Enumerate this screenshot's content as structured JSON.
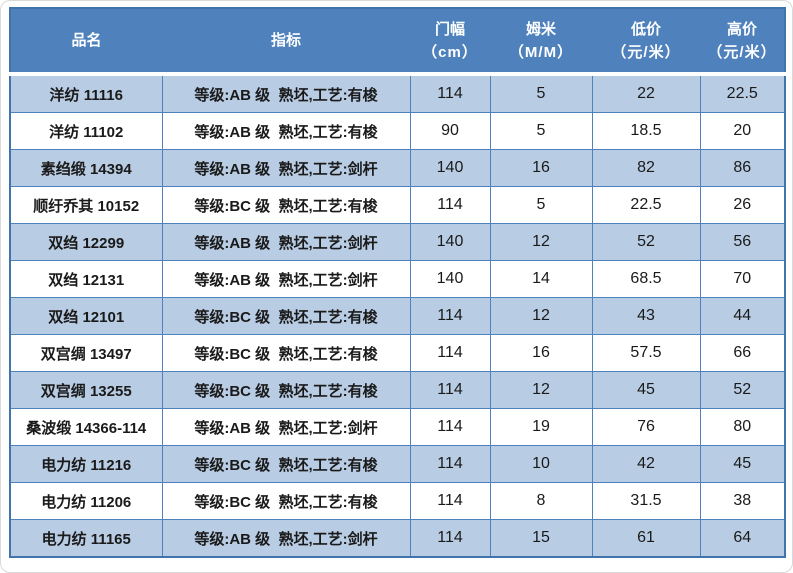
{
  "table": {
    "columns": [
      {
        "key": "name",
        "label": "品名",
        "unit": ""
      },
      {
        "key": "spec",
        "label": "指标",
        "unit": ""
      },
      {
        "key": "width",
        "label": "门幅",
        "unit": "（cm）"
      },
      {
        "key": "momme",
        "label": "姆米",
        "unit": "（M/M）"
      },
      {
        "key": "low",
        "label": "低价",
        "unit": "（元/米）"
      },
      {
        "key": "high",
        "label": "高价",
        "unit": "（元/米）"
      }
    ],
    "rows": [
      {
        "name": "洋纺 11116",
        "spec": "等级:AB 级  熟坯,工艺:有梭",
        "width": "114",
        "momme": "5",
        "low": "22",
        "high": "22.5"
      },
      {
        "name": "洋纺 11102",
        "spec": "等级:AB 级  熟坯,工艺:有梭",
        "width": "90",
        "momme": "5",
        "low": "18.5",
        "high": "20"
      },
      {
        "name": "素绉缎 14394",
        "spec": "等级:AB 级  熟坯,工艺:剑杆",
        "width": "140",
        "momme": "16",
        "low": "82",
        "high": "86"
      },
      {
        "name": "顺纡乔其 10152",
        "spec": "等级:BC 级  熟坯,工艺:有梭",
        "width": "114",
        "momme": "5",
        "low": "22.5",
        "high": "26"
      },
      {
        "name": "双绉 12299",
        "spec": "等级:AB 级  熟坯,工艺:剑杆",
        "width": "140",
        "momme": "12",
        "low": "52",
        "high": "56"
      },
      {
        "name": "双绉 12131",
        "spec": "等级:AB 级  熟坯,工艺:剑杆",
        "width": "140",
        "momme": "14",
        "low": "68.5",
        "high": "70"
      },
      {
        "name": "双绉 12101",
        "spec": "等级:BC 级  熟坯,工艺:有梭",
        "width": "114",
        "momme": "12",
        "low": "43",
        "high": "44"
      },
      {
        "name": "双宫绸 13497",
        "spec": "等级:BC 级  熟坯,工艺:有梭",
        "width": "114",
        "momme": "16",
        "low": "57.5",
        "high": "66"
      },
      {
        "name": "双宫绸 13255",
        "spec": "等级:BC 级  熟坯,工艺:有梭",
        "width": "114",
        "momme": "12",
        "low": "45",
        "high": "52"
      },
      {
        "name": "桑波缎 14366-114",
        "spec": "等级:AB 级  熟坯,工艺:剑杆",
        "width": "114",
        "momme": "19",
        "low": "76",
        "high": "80"
      },
      {
        "name": "电力纺 11216",
        "spec": "等级:BC 级  熟坯,工艺:有梭",
        "width": "114",
        "momme": "10",
        "low": "42",
        "high": "45"
      },
      {
        "name": "电力纺 11206",
        "spec": "等级:BC 级  熟坯,工艺:有梭",
        "width": "114",
        "momme": "8",
        "low": "31.5",
        "high": "38"
      },
      {
        "name": "电力纺 11165",
        "spec": "等级:AB 级  熟坯,工艺:剑杆",
        "width": "114",
        "momme": "15",
        "low": "61",
        "high": "64"
      }
    ]
  },
  "colors": {
    "header_bg": "#4f81bd",
    "row_alt_bg": "#b8cce4",
    "row_bg": "#ffffff",
    "grid_border": "#4f81bd",
    "outer_border": "#4174ab",
    "header_text": "#ffffff",
    "body_text": "#1a1a1a"
  }
}
